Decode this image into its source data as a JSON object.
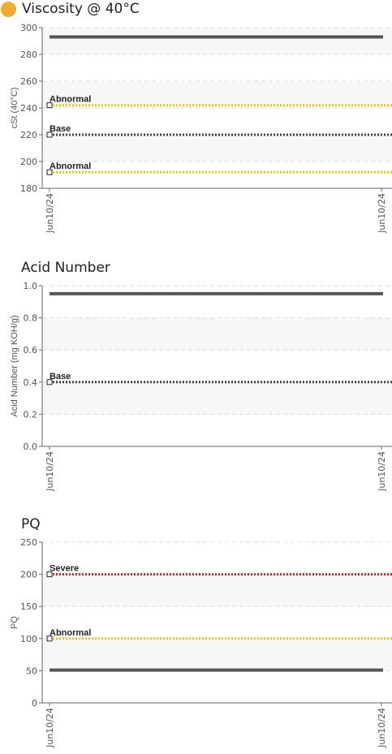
{
  "colors": {
    "title_dot": "#f0ac2c",
    "data_line": "#555555",
    "base": "#444444",
    "abnormal": "#f0c419",
    "severe": "#e02020"
  },
  "chart_data": [
    {
      "type": "line",
      "title": "Viscosity @ 40°C",
      "ylabel": "cSt (40°C)",
      "ylim": [
        180,
        300
      ],
      "yticks": [
        180,
        200,
        220,
        240,
        260,
        280,
        300
      ],
      "xticks": [
        "Jun10/24",
        "Jun10/24"
      ],
      "series": [
        {
          "x": [
            "Jun10/24",
            "Jun10/24"
          ],
          "values": [
            293,
            293
          ]
        }
      ],
      "reference_lines": [
        {
          "label": "Abnormal",
          "value": 242,
          "level": "abnormal"
        },
        {
          "label": "Base",
          "value": 220,
          "level": "base"
        },
        {
          "label": "Abnormal",
          "value": 192,
          "level": "abnormal"
        }
      ],
      "grid": true
    },
    {
      "type": "line",
      "title": "Acid Number",
      "ylabel": "Acid Number (mg KOH/g)",
      "ylim": [
        0,
        1.0
      ],
      "yticks": [
        "0.0",
        "0.2",
        "0.4",
        "0.6",
        "0.8",
        "1.0"
      ],
      "xticks": [
        "Jun10/24",
        "Jun10/24"
      ],
      "series": [
        {
          "x": [
            "Jun10/24",
            "Jun10/24"
          ],
          "values": [
            0.95,
            0.95
          ]
        }
      ],
      "reference_lines": [
        {
          "label": "Base",
          "value": 0.4,
          "level": "base"
        }
      ],
      "grid": true
    },
    {
      "type": "line",
      "title": "PQ",
      "ylabel": "PQ",
      "ylim": [
        0,
        250
      ],
      "yticks": [
        0,
        50,
        100,
        150,
        200,
        250
      ],
      "xticks": [
        "Jun10/24",
        "Jun10/24"
      ],
      "series": [
        {
          "x": [
            "Jun10/24",
            "Jun10/24"
          ],
          "values": [
            51,
            51
          ]
        }
      ],
      "reference_lines": [
        {
          "label": "Severe",
          "value": 200,
          "level": "severe"
        },
        {
          "label": "Abnormal",
          "value": 100,
          "level": "abnormal"
        }
      ],
      "grid": true
    }
  ]
}
